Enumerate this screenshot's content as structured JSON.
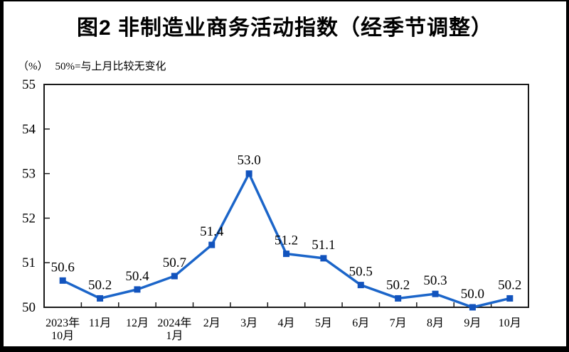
{
  "header": {
    "title": "图2 非制造业商务活动指数（经季节调整）",
    "unit_label": "（%）",
    "note": "50%=与上月比较无变化"
  },
  "chart_data": {
    "type": "line",
    "title": "图2 非制造业商务活动指数（经季节调整）",
    "subtitle": "50%=与上月比较无变化",
    "xlabel": "",
    "ylabel": "（%）",
    "categories": [
      [
        "2023年",
        "10月"
      ],
      [
        "11月"
      ],
      [
        "12月"
      ],
      [
        "2024年",
        "1月"
      ],
      [
        "2月"
      ],
      [
        "3月"
      ],
      [
        "4月"
      ],
      [
        "5月"
      ],
      [
        "6月"
      ],
      [
        "7月"
      ],
      [
        "8月"
      ],
      [
        "9月"
      ],
      [
        "10月"
      ]
    ],
    "values": [
      50.6,
      50.2,
      50.4,
      50.7,
      51.4,
      53.0,
      51.2,
      51.1,
      50.5,
      50.2,
      50.3,
      50.0,
      50.2
    ],
    "ylim": [
      50,
      55
    ],
    "ytick_step": 1,
    "grid": false,
    "legend": "none",
    "line_color": "#1b65c9",
    "marker_color": "#1253bd",
    "marker": "square",
    "axis_color": "#1a1a1a"
  }
}
